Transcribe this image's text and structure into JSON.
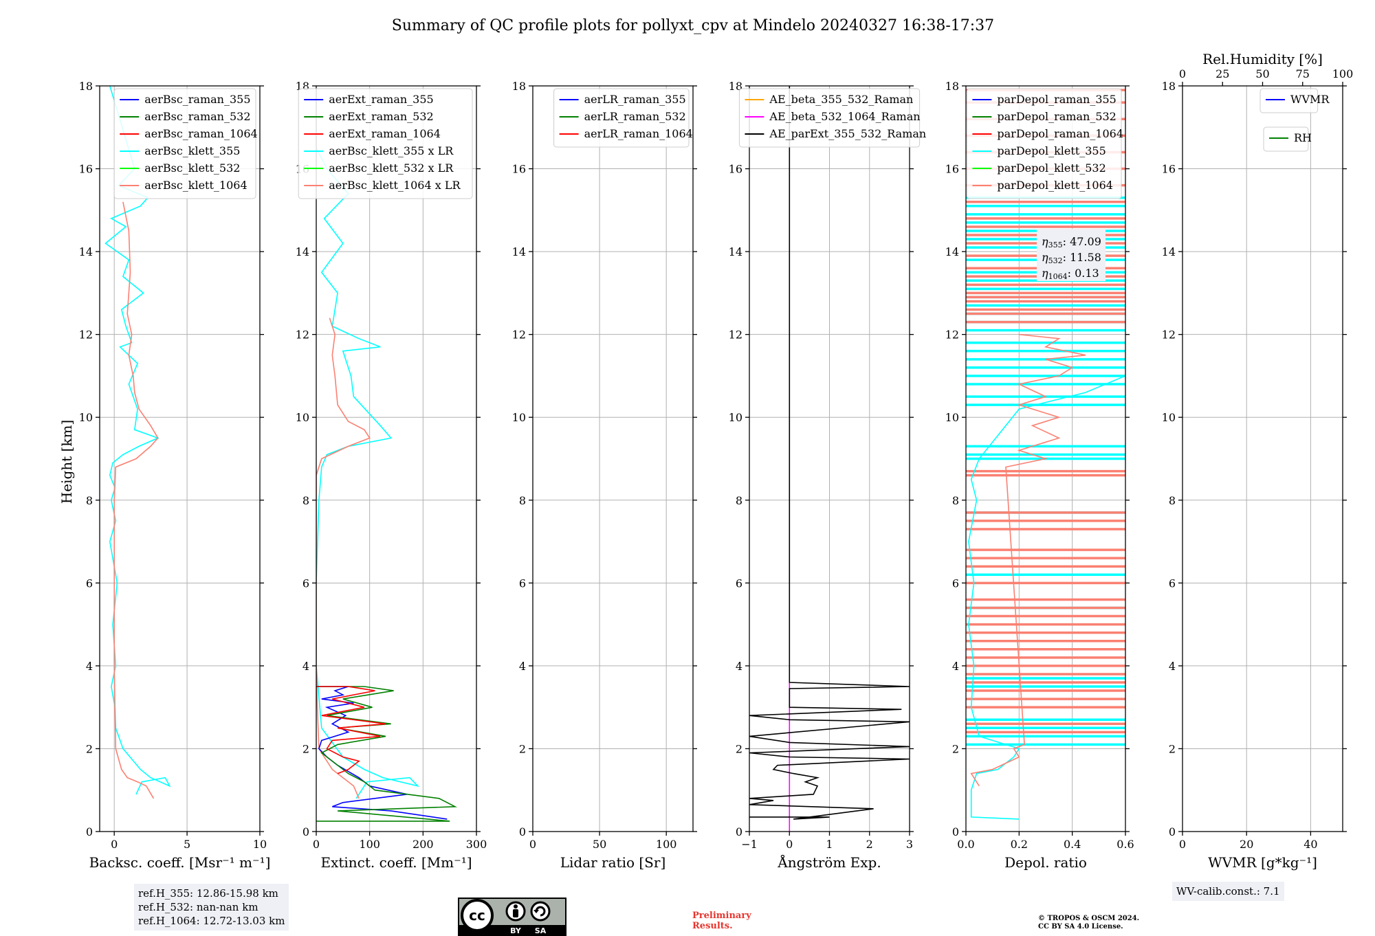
{
  "title": "Summary of QC profile plots for pollyxt_cpv at Mindelo 20240327 16:38-17:37",
  "ylabel": "Height [km]",
  "colors": {
    "blue": "#0000ff",
    "green": "#008000",
    "red": "#ff0000",
    "cyan": "#00ffff",
    "lime": "#00ff00",
    "salmon": "#fa8072",
    "orange": "#ffa500",
    "magenta": "#ff00ff",
    "black": "#000000",
    "grid": "#b0b0b0",
    "refbox": "#eef0f5",
    "preliminary": "#e8352e"
  },
  "chart_data": [
    {
      "type": "line",
      "id": "bsc",
      "xlabel": "Backsc. coeff. [Msr⁻¹ m⁻¹]",
      "xlim": [
        -1,
        10
      ],
      "ylim": [
        0,
        18
      ],
      "xticks": [
        0,
        5,
        10
      ],
      "yticks": [
        0,
        2,
        4,
        6,
        8,
        10,
        12,
        14,
        16,
        18
      ],
      "legend": [
        "aerBsc_raman_355",
        "aerBsc_raman_532",
        "aerBsc_raman_1064",
        "aerBsc_klett_355",
        "aerBsc_klett_532",
        "aerBsc_klett_1064"
      ],
      "legend_colors": [
        "blue",
        "green",
        "red",
        "cyan",
        "lime",
        "salmon"
      ],
      "legend_loc": "upper right",
      "series": [
        {
          "name": "aerBsc_klett_355",
          "color": "cyan",
          "x": [
            1.5,
            1.9,
            3.5,
            3.8,
            2.5,
            1.8,
            0.6,
            0.1,
            0.05,
            -0.2,
            0.1,
            -0.1,
            0.2,
            -0.3,
            0.1,
            -0.2,
            0.05,
            -0.3,
            -0.1,
            0.6,
            1.7,
            3.0,
            1.4,
            1.6,
            1.0,
            1.6,
            0.4,
            1.2,
            0.8,
            0.5,
            2.0,
            0.6,
            1.0,
            -0.6,
            0.8,
            -0.2,
            1.8,
            2.3,
            0.3,
            1.4,
            -0.3
          ],
          "y": [
            0.9,
            1.2,
            1.3,
            1.1,
            1.3,
            1.5,
            2.0,
            2.5,
            3.0,
            3.5,
            4.0,
            5.0,
            6.0,
            7.0,
            7.5,
            8.0,
            8.3,
            8.6,
            8.9,
            9.1,
            9.3,
            9.5,
            9.7,
            10.2,
            10.8,
            11.3,
            11.7,
            11.8,
            12.2,
            12.6,
            13.0,
            13.4,
            13.8,
            14.2,
            14.6,
            14.8,
            15.1,
            15.3,
            15.6,
            16.0,
            18.0
          ]
        },
        {
          "name": "aerBsc_klett_1064",
          "color": "salmon",
          "x": [
            2.7,
            2.2,
            1.6,
            0.9,
            0.5,
            0.1,
            0.05,
            0.0,
            0.0,
            0.0,
            0.0,
            0.0,
            0.1,
            1.5,
            2.5,
            3.0,
            2.5,
            1.7,
            1.4,
            1.3,
            1.0,
            1.2,
            0.9,
            1.1,
            1.0,
            0.6
          ],
          "y": [
            0.8,
            1.1,
            1.2,
            1.3,
            1.5,
            2.0,
            3.0,
            4.0,
            5.0,
            6.0,
            7.0,
            8.0,
            8.8,
            9.0,
            9.3,
            9.5,
            9.8,
            10.2,
            10.6,
            11.0,
            11.5,
            12.0,
            12.5,
            13.5,
            14.5,
            15.2
          ]
        }
      ]
    },
    {
      "type": "line",
      "id": "ext",
      "xlabel": "Extinct. coeff. [Mm⁻¹]",
      "xlim": [
        0,
        300
      ],
      "ylim": [
        0,
        18
      ],
      "xticks": [
        0,
        100,
        200,
        300
      ],
      "yticks": [
        0,
        2,
        4,
        6,
        8,
        10,
        12,
        14,
        16,
        18
      ],
      "legend": [
        "aerExt_raman_355",
        "aerExt_raman_532",
        "aerExt_raman_1064",
        "aerBsc_klett_355 x LR",
        "aerBsc_klett_532 x LR",
        "aerBsc_klett_1064 x LR"
      ],
      "legend_colors": [
        "blue",
        "green",
        "red",
        "cyan",
        "lime",
        "salmon"
      ],
      "legend_loc": "upper right",
      "series": [
        {
          "name": "aerBsc_klett_355 x LR",
          "color": "cyan",
          "x": [
            75,
            95,
            175,
            190,
            125,
            90,
            50,
            10,
            0,
            0,
            5,
            10,
            20,
            60,
            140,
            120,
            70,
            65,
            50,
            120,
            80,
            30,
            40,
            10,
            50,
            15,
            60,
            20,
            0
          ],
          "y": [
            0.8,
            1.2,
            1.3,
            1.1,
            1.3,
            1.5,
            1.8,
            2.5,
            4.0,
            6.0,
            8.0,
            8.8,
            9.1,
            9.3,
            9.5,
            9.8,
            10.5,
            11.0,
            11.6,
            11.7,
            11.9,
            12.2,
            13.0,
            13.5,
            14.2,
            14.8,
            15.4,
            16.0,
            16.5
          ]
        },
        {
          "name": "aerBsc_klett_1064 x LR",
          "color": "salmon",
          "x": [
            80,
            70,
            50,
            30,
            15,
            5,
            2,
            0,
            0,
            10,
            60,
            100,
            90,
            60,
            40,
            35,
            30,
            35,
            25
          ],
          "y": [
            0.8,
            1.1,
            1.3,
            1.5,
            1.8,
            2.0,
            3.0,
            4.0,
            8.6,
            9.0,
            9.3,
            9.5,
            9.7,
            9.9,
            10.3,
            11.0,
            11.5,
            12.0,
            12.4
          ]
        },
        {
          "name": "aerExt_raman_355",
          "color": "blue",
          "x": [
            245,
            140,
            30,
            50,
            170,
            100,
            80,
            40,
            20,
            5,
            10,
            60,
            30,
            55,
            20,
            70,
            10,
            50,
            35,
            60,
            0
          ],
          "y": [
            0.3,
            0.5,
            0.6,
            0.7,
            0.9,
            1.1,
            1.3,
            1.6,
            1.8,
            2.0,
            2.2,
            2.4,
            2.6,
            2.8,
            3.0,
            3.1,
            3.2,
            3.3,
            3.4,
            3.5,
            3.5
          ]
        },
        {
          "name": "aerExt_raman_532",
          "color": "green",
          "x": [
            0,
            250,
            40,
            260,
            230,
            110,
            90,
            60,
            30,
            10,
            40,
            130,
            40,
            140,
            20,
            105,
            50,
            145,
            90,
            0
          ],
          "y": [
            0.25,
            0.25,
            0.5,
            0.6,
            0.8,
            1.0,
            1.2,
            1.4,
            1.7,
            1.9,
            2.1,
            2.3,
            2.5,
            2.6,
            2.8,
            3.0,
            3.2,
            3.4,
            3.5,
            3.5
          ]
        },
        {
          "name": "aerExt_raman_1064",
          "color": "red",
          "x": [
            40,
            60,
            80,
            50,
            20,
            30,
            120,
            40,
            130,
            10,
            90,
            30,
            110,
            60,
            0
          ],
          "y": [
            1.4,
            1.5,
            1.7,
            1.8,
            2.0,
            2.2,
            2.3,
            2.5,
            2.6,
            2.8,
            3.0,
            3.2,
            3.4,
            3.5,
            3.5
          ]
        }
      ]
    },
    {
      "type": "line",
      "id": "lr",
      "xlabel": "Lidar ratio [Sr]",
      "xlim": [
        0,
        120
      ],
      "ylim": [
        0,
        18
      ],
      "xticks": [
        0,
        50,
        100
      ],
      "yticks": [
        0,
        2,
        4,
        6,
        8,
        10,
        12,
        14,
        16,
        18
      ],
      "legend": [
        "aerLR_raman_355",
        "aerLR_raman_532",
        "aerLR_raman_1064"
      ],
      "legend_colors": [
        "blue",
        "green",
        "red"
      ],
      "legend_loc": "upper right",
      "series": []
    },
    {
      "type": "line",
      "id": "ae",
      "xlabel": "Ångström Exp.",
      "xlim": [
        -1,
        3
      ],
      "ylim": [
        0,
        18
      ],
      "xticks": [
        -1,
        0,
        1,
        2,
        3
      ],
      "yticks": [
        0,
        2,
        4,
        6,
        8,
        10,
        12,
        14,
        16,
        18
      ],
      "legend": [
        "AE_beta_355_532_Raman",
        "AE_beta_532_1064_Raman",
        "AE_parExt_355_532_Raman"
      ],
      "legend_colors": [
        "orange",
        "magenta",
        "black"
      ],
      "legend_loc": "upper center",
      "series": [
        {
          "name": "AE_beta_532_1064_Raman",
          "color": "magenta",
          "x": [
            0,
            0
          ],
          "y": [
            0,
            3.6
          ]
        },
        {
          "name": "AE_parExt_355_532_Raman",
          "color": "black",
          "x": [
            -1,
            1.0,
            0.1,
            2.1,
            -1,
            -0.4,
            -1,
            0.6,
            0.7,
            0.4,
            0.7,
            0.1,
            -0.4,
            -0.3,
            3.0,
            0,
            -1,
            3.0,
            0,
            -1,
            3.0,
            0,
            -1,
            2.8,
            0,
            0,
            3.0,
            0,
            0,
            0
          ],
          "y": [
            0.35,
            0.35,
            0.3,
            0.55,
            0.65,
            0.75,
            0.8,
            0.9,
            1.1,
            1.2,
            1.3,
            1.4,
            1.5,
            1.6,
            1.75,
            1.8,
            1.9,
            2.05,
            2.15,
            2.3,
            2.65,
            2.7,
            2.8,
            2.95,
            3.0,
            3.45,
            3.5,
            3.6,
            16.0,
            18.0
          ]
        }
      ]
    },
    {
      "type": "line",
      "id": "depol",
      "xlabel": "Depol. ratio",
      "xlim": [
        0,
        0.6
      ],
      "ylim": [
        0,
        18
      ],
      "xticks": [
        0.0,
        0.2,
        0.4,
        0.6
      ],
      "yticks": [
        0,
        2,
        4,
        6,
        8,
        10,
        12,
        14,
        16,
        18
      ],
      "legend": [
        "parDepol_raman_355",
        "parDepol_raman_532",
        "parDepol_raman_1064",
        "parDepol_klett_355",
        "parDepol_klett_532",
        "parDepol_klett_1064"
      ],
      "legend_colors": [
        "blue",
        "green",
        "red",
        "cyan",
        "lime",
        "salmon"
      ],
      "legend_loc": "upper right",
      "series": [
        {
          "name": "parDepol_klett_355",
          "color": "cyan",
          "x": [
            0.2,
            0.02,
            0.02,
            0.04,
            0.12,
            0.18,
            0.2,
            0.05,
            0.02,
            0.03,
            0.01,
            0.03,
            0.01,
            0.04,
            0.02,
            0.05,
            0.2,
            0.45,
            0.6
          ],
          "y": [
            0.3,
            0.35,
            1.0,
            1.4,
            1.5,
            1.8,
            2.0,
            2.3,
            3.0,
            4.0,
            5.0,
            6.0,
            7.0,
            8.0,
            8.5,
            9.0,
            10.2,
            10.6,
            11.0
          ]
        },
        {
          "name": "parDepol_klett_1064",
          "color": "salmon",
          "x": [
            0.05,
            0.02,
            0.1,
            0.2,
            0.18,
            0.22,
            0.15,
            0.3,
            0.2,
            0.35,
            0.25,
            0.35,
            0.2,
            0.3,
            0.2,
            0.35,
            0.4,
            0.3,
            0.45,
            0.3,
            0.35,
            0.2
          ],
          "y": [
            1.1,
            1.4,
            1.5,
            1.8,
            2.0,
            2.1,
            8.8,
            9.0,
            9.2,
            9.5,
            9.8,
            10.0,
            10.3,
            10.5,
            10.8,
            11.0,
            11.2,
            11.4,
            11.5,
            11.7,
            11.9,
            12.0
          ]
        }
      ],
      "hlines": {
        "cyan": [
          2.1,
          2.3,
          2.5,
          2.7,
          3.5,
          3.7,
          5.4,
          6.2,
          7.7,
          9.0,
          9.1,
          9.3,
          10.3,
          10.5,
          10.8,
          11.0,
          11.2,
          11.4,
          11.6,
          11.8,
          12.1,
          12.3,
          12.5,
          12.7,
          12.9,
          13.1,
          13.3,
          13.5,
          13.8,
          14.1,
          14.3,
          14.5,
          14.7,
          14.9,
          15.1,
          15.3
        ],
        "salmon": [
          2.4,
          2.6,
          3.0,
          3.2,
          3.4,
          3.6,
          3.8,
          4.0,
          4.2,
          4.4,
          4.6,
          4.8,
          5.0,
          5.2,
          5.4,
          5.6,
          6.0,
          6.4,
          6.6,
          6.8,
          7.3,
          7.5,
          7.7,
          8.6,
          8.7,
          12.3,
          12.5,
          12.6,
          12.8,
          12.9,
          13.0,
          13.2,
          13.4,
          13.6,
          13.9,
          14.2,
          14.4,
          14.6,
          14.8,
          15.2,
          15.6,
          16.0,
          16.4,
          16.8,
          17.2,
          17.6,
          17.9
        ]
      }
    },
    {
      "type": "line",
      "id": "wv",
      "xlabel": "WVMR [g*kg⁻¹]",
      "xlim": [
        0,
        50
      ],
      "ylim": [
        0,
        18
      ],
      "xticks": [
        0,
        20,
        40
      ],
      "yticks": [
        0,
        2,
        4,
        6,
        8,
        10,
        12,
        14,
        16,
        18
      ],
      "top_xlabel": "Rel.Humidity [%]",
      "top_xlim": [
        0,
        100
      ],
      "top_xticks": [
        0,
        25,
        50,
        75,
        100
      ],
      "legend": [
        "WVMR"
      ],
      "legend_colors": [
        "blue"
      ],
      "legend_loc": "upper right",
      "legend2": [
        "RH"
      ],
      "legend2_colors": [
        "green"
      ],
      "series": []
    }
  ],
  "eta": {
    "eta355": ": 47.09",
    "eta532": ": 11.58",
    "eta1064": ": 0.13"
  },
  "ref_heights": [
    "ref.H_355: 12.86-15.98 km",
    "ref.H_532: nan-nan km",
    "ref.H_1064: 12.72-13.03 km"
  ],
  "wv_calib": "WV-calib.const.: 7.1",
  "preliminary": [
    "Preliminary",
    "Results."
  ],
  "copyright": [
    "© TROPOS & OSCM 2024.",
    "CC BY SA 4.0 License."
  ],
  "cc_logo": {
    "cc": "cc",
    "by": "BY",
    "sa": "SA"
  }
}
